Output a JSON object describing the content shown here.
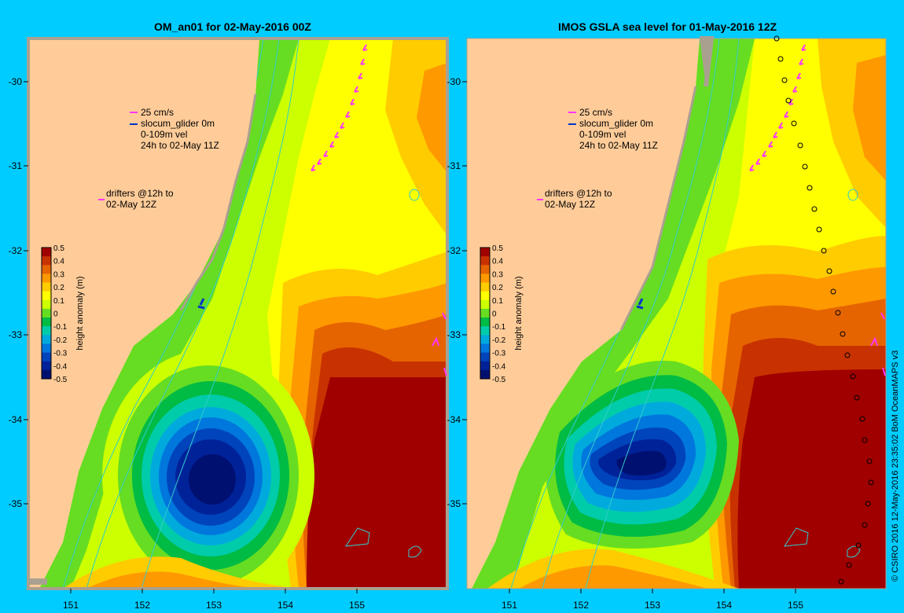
{
  "left_panel": {
    "title": "OM_an01 for 02-May-2016 00Z",
    "legend_vel": [
      "25 cm/s",
      "slocum_glider 0m",
      "0-109m vel",
      "24h to 02-May 11Z"
    ],
    "legend_drifters": [
      "drifters @12h to",
      "02-May 12Z"
    ]
  },
  "right_panel": {
    "title": "IMOS GSLA sea level  for 01-May-2016 12Z",
    "legend_vel": [
      "25 cm/s",
      "slocum_glider 0m",
      "0-109m vel",
      "24h to 02-May 11Z"
    ],
    "legend_drifters": [
      "drifters @12h to",
      "02-May 12Z"
    ]
  },
  "axes": {
    "x_ticks": [
      "151",
      "152",
      "153",
      "154",
      "155"
    ],
    "y_ticks": [
      "-30",
      "-31",
      "-32",
      "-33",
      "-34",
      "-35"
    ]
  },
  "colorbar": {
    "label": "height anomaly (m)",
    "ticks": [
      "0.5",
      "0.4",
      "0.3",
      "0.2",
      "0.1",
      "0",
      "-0.1",
      "-0.2",
      "-0.3",
      "-0.4",
      "-0.5"
    ],
    "colors": [
      "#a00000",
      "#c83200",
      "#e66400",
      "#ff9900",
      "#ffcc00",
      "#ffff00",
      "#ccff00",
      "#66dd22",
      "#00bb44",
      "#00ccaa",
      "#00aadd",
      "#0077dd",
      "#0044bb",
      "#002299",
      "#001070"
    ]
  },
  "credit": "© CSIRO 2016  12-May-2016 23:35:02 BoM OceanMAPS v3",
  "colors": {
    "background": "#00ccff",
    "land": "#ffcc99",
    "coast_grey": "#aaa090",
    "contour": "#33cccc",
    "vector": "#ff33ff"
  }
}
